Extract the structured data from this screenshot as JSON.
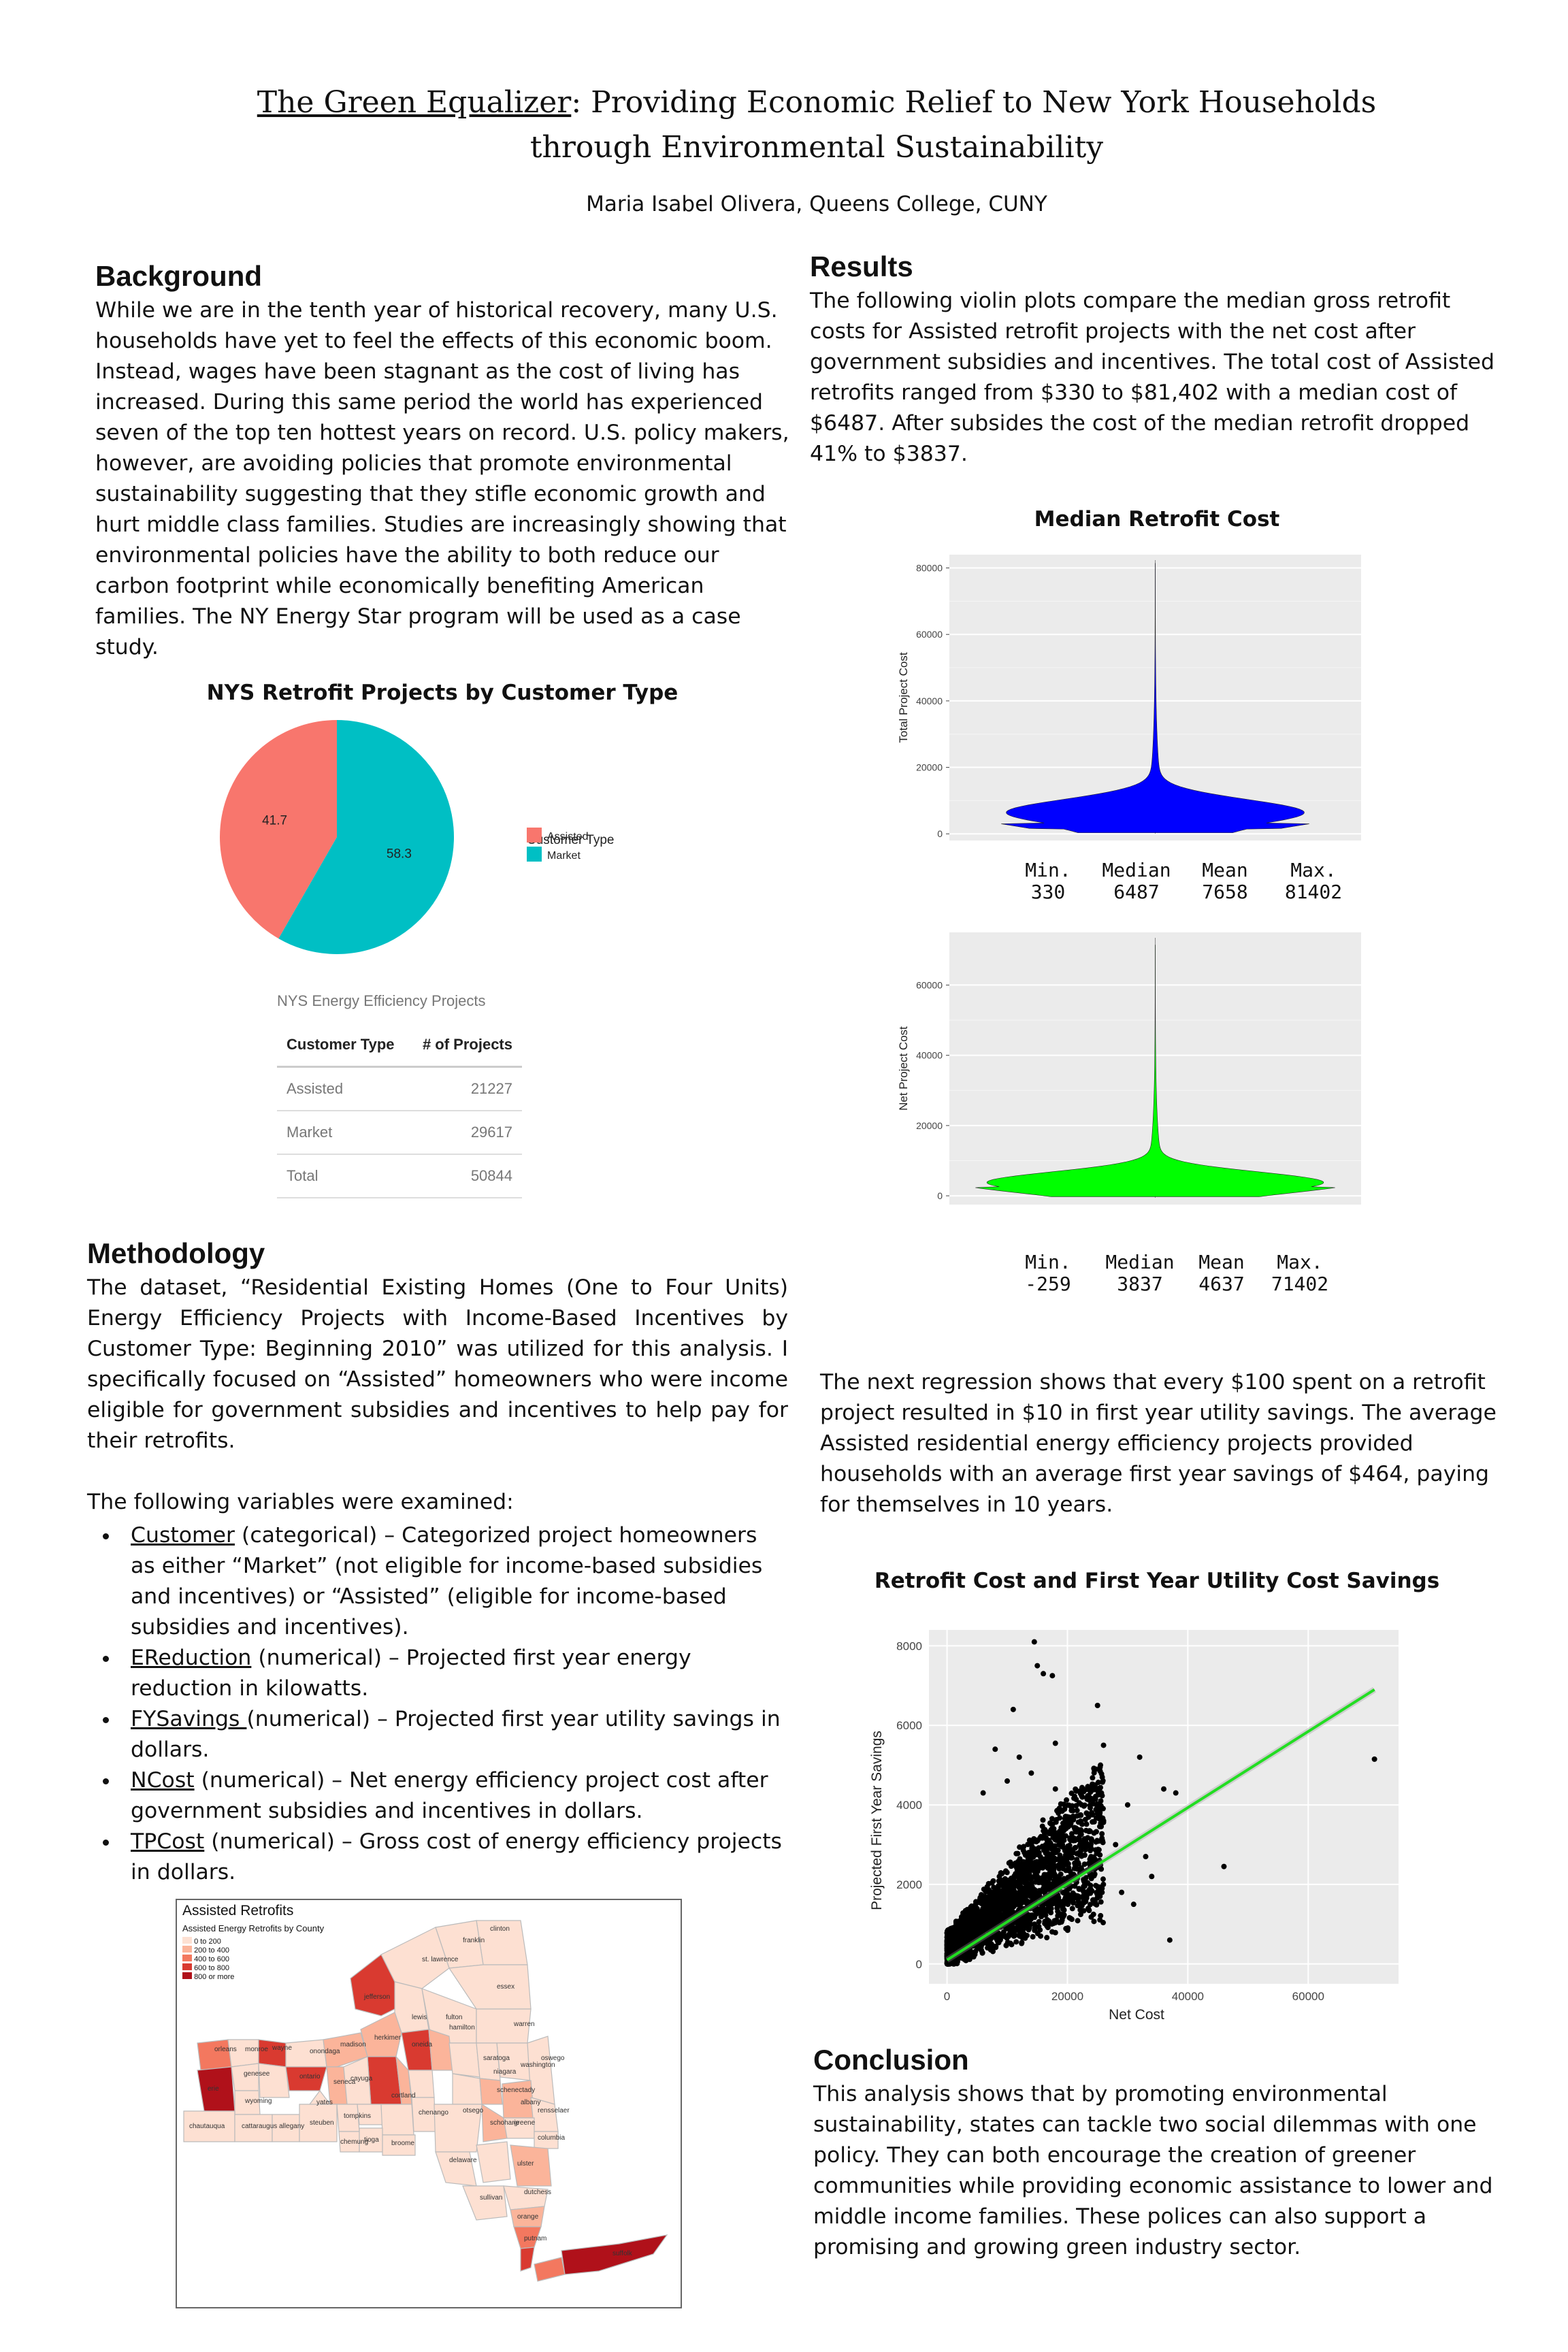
{
  "header": {
    "title_underlined": "The Green Equalizer",
    "title_rest_line1": ": Providing Economic Relief to New York Households",
    "title_line2": "through Environmental Sustainability",
    "author": "Maria Isabel Olivera, Queens College, CUNY"
  },
  "background": {
    "heading": "Background",
    "text": "While we are in the tenth year of historical recovery, many U.S. households have yet to feel the effects of this economic boom. Instead, wages have been stagnant as the cost of living has increased. During this same period the world has experienced seven of the top ten hottest years on record. U.S. policy makers, however, are avoiding policies that promote environmental sustainability suggesting that they stifle economic growth and hurt middle class families. Studies are increasingly showing that environmental policies have the ability to both reduce our carbon footprint while economically benefiting American families. The NY Energy Star program will be used as a case study."
  },
  "pie_chart": {
    "title": "NYS Retrofit Projects by Customer Type",
    "legend_title": "Customer Type",
    "colors": {
      "Assisted": "#F8766D",
      "Market": "#00BFC4"
    }
  },
  "projects_table": {
    "title": "NYS Energy Efficiency Projects",
    "col_type": "Customer Type",
    "col_count": "# of Projects",
    "rows": [
      {
        "type": "Assisted",
        "count": "21227"
      },
      {
        "type": "Market",
        "count": "29617"
      },
      {
        "type": "Total",
        "count": "50844"
      }
    ]
  },
  "methodology": {
    "heading": "Methodology",
    "text": "The dataset, “Residential Existing Homes (One to Four Units) Energy Efficiency Projects with Income-Based Incentives by Customer Type: Beginning 2010” was utilized for this analysis. I specifically focused on “Assisted” homeowners who were income eligible for government subsidies and incentives to help pay for their retrofits.",
    "vars_intro": "The following variables were examined:",
    "variables": [
      {
        "name": "Customer",
        "desc": " (categorical) – Categorized project homeowners as either “Market” (not eligible for income-based subsidies and incentives) or “Assisted” (eligible for income-based subsidies and incentives)."
      },
      {
        "name": "EReduction",
        "desc": " (numerical) – Projected first year energy reduction in kilowatts."
      },
      {
        "name": "FYSavings ",
        "desc": "(numerical) – Projected first year utility savings in dollars."
      },
      {
        "name": "NCost",
        "desc": " (numerical) – Net energy efficiency project cost after government subsidies and incentives in dollars."
      },
      {
        "name": "TPCost",
        "desc": " (numerical) – Gross cost of energy efficiency projects in dollars."
      }
    ]
  },
  "map": {
    "title": "Assisted Retrofits",
    "legend_title": "Assisted Energy Retrofits by County",
    "legend_items": [
      "0 to 200",
      "200 to 400",
      "400 to 600",
      "600 to 800",
      "800 or more"
    ],
    "legend_colors": [
      "#fde0d2",
      "#fbb49a",
      "#f3785f",
      "#d93a30",
      "#b0111a"
    ],
    "county_labels": [
      "clinton",
      "franklin",
      "st. lawrence",
      "essex",
      "jefferson",
      "lewis",
      "hamilton",
      "warren",
      "washington",
      "oswego",
      "herkimer",
      "oneida",
      "fulton",
      "saratoga",
      "niagara",
      "orleans",
      "monroe",
      "wayne",
      "onondaga",
      "madison",
      "schenectady",
      "erie",
      "genesee",
      "ontario",
      "seneca",
      "cayuga",
      "otsego",
      "albany",
      "rensselaer",
      "wyoming",
      "yates",
      "cortland",
      "schoharie",
      "chautauqua",
      "cattaraugus",
      "allegany",
      "steuben",
      "tompkins",
      "chenango",
      "greene",
      "columbia",
      "chemung",
      "tioga",
      "broome",
      "delaware",
      "ulster",
      "dutchess",
      "sullivan",
      "orange",
      "putnam",
      "suffolk"
    ]
  },
  "results": {
    "heading": "Results",
    "text": "The following violin plots compare the median gross retrofit costs for Assisted retrofit projects with the net cost after government subsidies and incentives. The total cost of Assisted retrofits ranged from $330 to $81,402 with a median cost of $6487. After subsides the cost of the median retrofit dropped 41% to $3837.",
    "text2": "The next regression shows that every $100 spent on a retrofit project resulted in $10 in first year utility savings. The average Assisted residential energy efficiency projects provided households with an average first year savings of $464, paying for themselves in 10 years."
  },
  "violin": {
    "title": "Median Retrofit Cost",
    "stat_labels": [
      "Min.",
      "Median",
      "Mean",
      "Max."
    ],
    "colors": {
      "total": "#0000ff",
      "net": "#00ff00"
    }
  },
  "scatter": {
    "title": "Retrofit Cost and First Year Utility Cost Savings",
    "fit_color": "#22dd22"
  },
  "conclusion": {
    "heading": "Conclusion",
    "text": "This analysis shows that by promoting environmental sustainability, states can tackle two social dilemmas with one policy. They can both encourage the creation of greener communities while providing economic assistance to lower and middle income families. These polices can also support a promising and growing green industry sector."
  },
  "chart_data": [
    {
      "type": "pie",
      "title": "NYS Retrofit Projects by Customer Type",
      "categories": [
        "Assisted",
        "Market"
      ],
      "values": [
        41.7,
        58.3
      ],
      "legend_title": "Customer Type",
      "legend": "right"
    },
    {
      "type": "violin",
      "ylabel": "Total Project Cost",
      "ylim": [
        -2000,
        84000
      ],
      "yticks": [
        0,
        20000,
        40000,
        60000,
        80000
      ],
      "stats": {
        "min": 330,
        "median": 6487,
        "mean": 7658,
        "max": 81402
      },
      "grid": true
    },
    {
      "type": "violin",
      "ylabel": "Net Project Cost",
      "ylim": [
        -2500,
        75000
      ],
      "yticks": [
        0,
        20000,
        40000,
        60000
      ],
      "stats": {
        "min": -259,
        "median": 3837,
        "mean": 4637,
        "max": 71402
      },
      "grid": true
    },
    {
      "type": "scatter",
      "title": "Retrofit Cost and First Year Utility Cost Savings",
      "xlabel": "Net Cost",
      "ylabel": "Projected First Year Savings",
      "xlim": [
        -3000,
        75000
      ],
      "ylim": [
        -500,
        8400
      ],
      "xticks": [
        0,
        20000,
        40000,
        60000
      ],
      "yticks": [
        0,
        2000,
        4000,
        6000,
        8000
      ],
      "fit_line": {
        "x": [
          0,
          71000
        ],
        "y": [
          100,
          6900
        ]
      },
      "points": [
        [
          14500,
          8100
        ],
        [
          15000,
          7500
        ],
        [
          16000,
          7300
        ],
        [
          17500,
          7250
        ],
        [
          11000,
          6400
        ],
        [
          25000,
          6500
        ],
        [
          18000,
          5550
        ],
        [
          26000,
          5500
        ],
        [
          32000,
          5200
        ],
        [
          71000,
          5150
        ],
        [
          8000,
          5400
        ],
        [
          12000,
          5200
        ],
        [
          36000,
          4400
        ],
        [
          38000,
          4300
        ],
        [
          30000,
          4000
        ],
        [
          46000,
          2450
        ],
        [
          37000,
          600
        ],
        [
          22000,
          3300
        ],
        [
          28000,
          3000
        ],
        [
          33000,
          2700
        ],
        [
          20000,
          3600
        ],
        [
          24000,
          3100
        ],
        [
          10000,
          4600
        ],
        [
          6000,
          4300
        ],
        [
          14000,
          4800
        ],
        [
          18000,
          4400
        ],
        [
          26000,
          3600
        ],
        [
          34000,
          2200
        ],
        [
          29000,
          1800
        ],
        [
          31000,
          1500
        ]
      ],
      "grid": true
    }
  ]
}
